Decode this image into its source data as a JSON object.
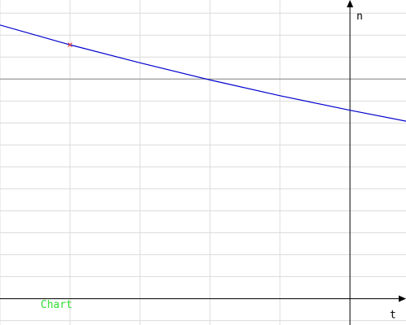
{
  "chart_data": {
    "type": "line",
    "xlabel": "t",
    "ylabel": "n",
    "xlim": [
      -25,
      4
    ],
    "ylim": [
      -0.6,
      6.8
    ],
    "grid": true,
    "grid_x_step": 5,
    "grid_y_step": 0.5,
    "series": [
      {
        "color": "#0000cc",
        "x": [
          -25,
          -20,
          -15,
          -10,
          -5,
          0,
          5
        ],
        "y": [
          6.23,
          5.78,
          5.37,
          4.98,
          4.62,
          4.29,
          3.98
        ]
      }
    ],
    "marker": {
      "x": -20,
      "y": 5.78,
      "color": "#dd3333"
    },
    "reference_line": {
      "y": 5.0,
      "color": "#888888"
    }
  },
  "footer": {
    "label": "Chart",
    "color": "#33dd33"
  }
}
